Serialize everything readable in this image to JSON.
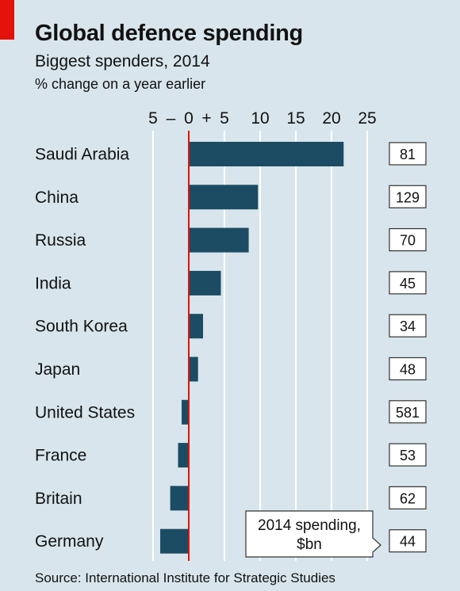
{
  "title": "Global defence spending",
  "subtitle": "Biggest spenders, 2014",
  "unit_label": "% change on a year earlier",
  "source": "Source: International Institute for Strategic Studies",
  "callout": {
    "line1": "2014 spending,",
    "line2": "$bn"
  },
  "colors": {
    "bar": "#1c4c63",
    "zero_line": "#e3120b",
    "background": "#d8e5ec",
    "grid": "#ffffff"
  },
  "chart_data": {
    "type": "bar",
    "orientation": "horizontal",
    "categories": [
      "Saudi Arabia",
      "China",
      "Russia",
      "India",
      "South Korea",
      "Japan",
      "United States",
      "France",
      "Britain",
      "Germany"
    ],
    "series": [
      {
        "values": [
          21.7,
          9.7,
          8.4,
          4.5,
          2.0,
          1.3,
          -1.0,
          -1.5,
          -2.6,
          -4.0
        ]
      }
    ],
    "spending_bn": [
      "81",
      "129",
      "70",
      "45",
      "34",
      "48",
      "581",
      "53",
      "62",
      "44"
    ],
    "xlim": [
      -5,
      25
    ],
    "xticks": [
      -5,
      0,
      5,
      10,
      15,
      20,
      25
    ],
    "xtick_labels": [
      "5",
      "0",
      "5",
      "10",
      "15",
      "20",
      "25"
    ],
    "minus_label": "–",
    "plus_label": "+",
    "grid": true
  }
}
